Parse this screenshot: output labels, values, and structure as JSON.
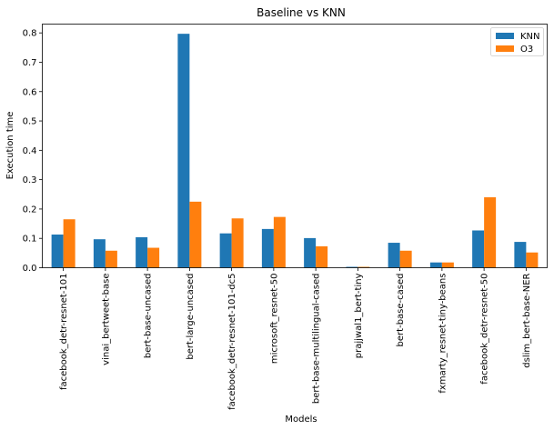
{
  "chart_data": {
    "type": "bar",
    "title": "Baseline vs KNN",
    "xlabel": "Models",
    "ylabel": "Execution time",
    "ylim": [
      0,
      0.83
    ],
    "yticks": [
      0.0,
      0.1,
      0.2,
      0.3,
      0.4,
      0.5,
      0.6,
      0.7,
      0.8
    ],
    "ytick_labels": [
      "0.0",
      "0.1",
      "0.2",
      "0.3",
      "0.4",
      "0.5",
      "0.6",
      "0.7",
      "0.8"
    ],
    "grid": false,
    "legend_position": "top-right",
    "categories": [
      "facebook_detr-resnet-101",
      "vinai_bertweet-base",
      "bert-base-uncased",
      "bert-large-uncased",
      "facebook_detr-resnet-101-dc5",
      "microsoft_resnet-50",
      "bert-base-multilingual-cased",
      "prajjwal1_bert-tiny",
      "bert-base-cased",
      "fxmarty_resnet-tiny-beans",
      "facebook_detr-resnet-50",
      "dslim_bert-base-NER"
    ],
    "series": [
      {
        "name": "KNN",
        "color": "#1f77b4",
        "values": [
          0.113,
          0.097,
          0.104,
          0.797,
          0.117,
          0.132,
          0.101,
          0.003,
          0.085,
          0.018,
          0.127,
          0.088
        ]
      },
      {
        "name": "O3",
        "color": "#ff7f0e",
        "values": [
          0.165,
          0.058,
          0.068,
          0.225,
          0.168,
          0.173,
          0.073,
          0.003,
          0.058,
          0.018,
          0.24,
          0.052
        ]
      }
    ]
  }
}
